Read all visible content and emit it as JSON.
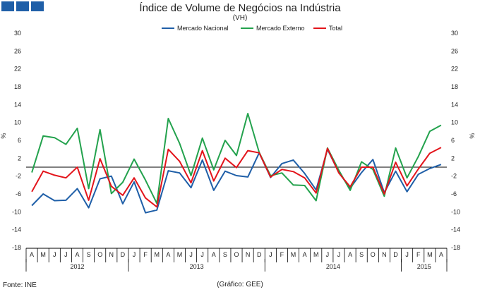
{
  "title": "Índice de Volume de Negócios na Indústria",
  "subtitle": "(VH)",
  "source": "Fonte: INE",
  "credit": "(Gráfico: GEE)",
  "colors": {
    "nacional": "#1f5fa8",
    "externo": "#23a24d",
    "total": "#e3141b",
    "logo": "#1f5fa8"
  },
  "chart_data": {
    "type": "line",
    "ylabel": "%",
    "ylim": [
      -18,
      30
    ],
    "yticks": [
      30,
      26,
      22,
      18,
      14,
      10,
      6,
      2,
      -2,
      -6,
      -10,
      -14,
      -18
    ],
    "ytick_labels": [
      "30",
      "26",
      "22",
      "18",
      "14",
      "10",
      "6",
      "2",
      "-2",
      "-6",
      "-10",
      "-14",
      "-18"
    ],
    "categories": [
      "A",
      "M",
      "J",
      "J",
      "A",
      "S",
      "O",
      "N",
      "D",
      "J",
      "F",
      "M",
      "A",
      "M",
      "J",
      "J",
      "A",
      "S",
      "O",
      "N",
      "D",
      "J",
      "F",
      "M",
      "A",
      "M",
      "J",
      "J",
      "A",
      "S",
      "O",
      "N",
      "D",
      "J",
      "F",
      "M",
      "A"
    ],
    "years": [
      {
        "label": "2012",
        "start": 0,
        "end": 8
      },
      {
        "label": "2013",
        "start": 9,
        "end": 20
      },
      {
        "label": "2014",
        "start": 21,
        "end": 32
      },
      {
        "label": "2015",
        "start": 33,
        "end": 36
      }
    ],
    "legend": [
      "Mercado Nacional",
      "Mercado Externo",
      "Total"
    ],
    "series": [
      {
        "name": "Mercado Nacional",
        "color": "#1f5fa8",
        "values": [
          -8.6,
          -6.0,
          -7.5,
          -7.4,
          -4.8,
          -9.1,
          -2.6,
          -2.0,
          -8.2,
          -3.3,
          -10.2,
          -9.6,
          -0.8,
          -1.3,
          -4.6,
          1.6,
          -5.2,
          -0.9,
          -1.9,
          -2.2,
          3.2,
          -2.3,
          0.8,
          1.6,
          -1.4,
          -5.1,
          4.0,
          -1.2,
          -4.7,
          -1.2,
          1.7,
          -5.7,
          -0.9,
          -5.5,
          -1.6,
          -0.3,
          0.6
        ]
      },
      {
        "name": "Mercado Externo",
        "color": "#23a24d",
        "values": [
          -1.2,
          7.0,
          6.6,
          5.1,
          8.7,
          -4.8,
          8.4,
          -5.9,
          -3.4,
          1.8,
          -2.9,
          -8.1,
          10.9,
          5.3,
          -1.9,
          6.5,
          -0.6,
          6.0,
          2.6,
          12.0,
          3.3,
          -1.9,
          -1.3,
          -4.0,
          -4.1,
          -7.5,
          4.3,
          -0.7,
          -5.2,
          1.2,
          -0.5,
          -6.5,
          4.3,
          -2.4,
          2.4,
          8.0,
          9.4
        ]
      },
      {
        "name": "Total",
        "color": "#e3141b",
        "values": [
          -5.5,
          -0.9,
          -1.8,
          -2.4,
          0.0,
          -7.4,
          1.9,
          -4.3,
          -6.3,
          -2.4,
          -6.9,
          -8.9,
          4.0,
          1.3,
          -3.5,
          3.7,
          -3.1,
          2.0,
          -0.1,
          3.7,
          3.2,
          -2.2,
          -0.5,
          -1.0,
          -2.4,
          -5.8,
          4.2,
          -1.3,
          -4.4,
          0.0,
          0.0,
          -6.0,
          1.1,
          -4.2,
          -0.4,
          3.1,
          4.4
        ]
      }
    ]
  }
}
